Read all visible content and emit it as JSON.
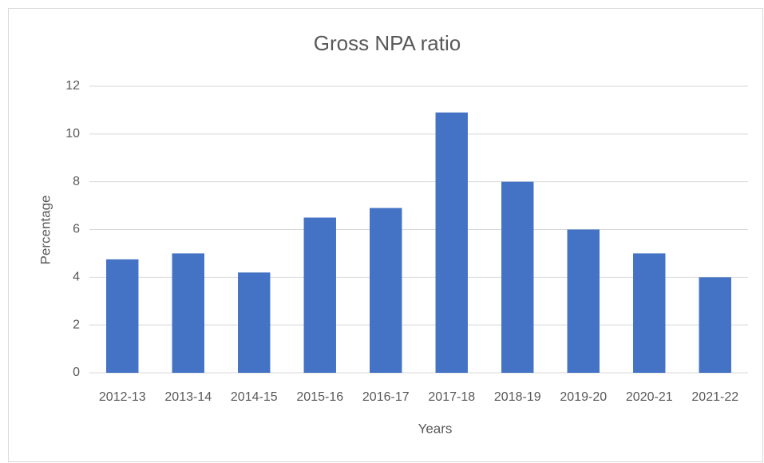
{
  "chart_data": {
    "type": "bar",
    "title": "Gross NPA ratio",
    "x_label": "Years",
    "y_label": "Percentage",
    "categories": [
      "2012-13",
      "2013-14",
      "2014-15",
      "2015-16",
      "2016-17",
      "2017-18",
      "2018-19",
      "2019-20",
      "2020-21",
      "2021-22"
    ],
    "values": [
      4.75,
      5.0,
      4.2,
      6.5,
      6.9,
      10.9,
      8.0,
      6.0,
      5.0,
      4.0
    ],
    "color": "#4472c4",
    "ylim": [
      0,
      12
    ],
    "yticks": [
      0,
      2,
      4,
      6,
      8,
      10,
      12
    ],
    "grid": true
  }
}
